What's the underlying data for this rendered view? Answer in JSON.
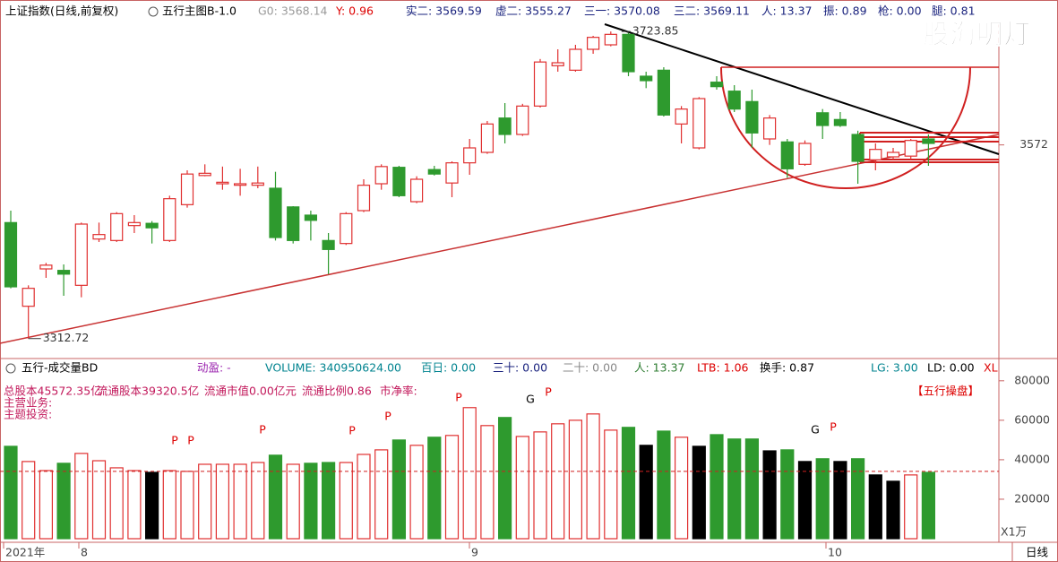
{
  "header": {
    "symbol": "上证指数(日线,前复权)",
    "indicator": "五行主图B-1.0",
    "g0": "G0: 3568.14",
    "y": "Y: 0.96",
    "shi2": "实二: 3569.59",
    "xu2": "虚二: 3555.27",
    "san1": "三一: 3570.08",
    "san2": "三二: 3569.11",
    "ren": "人: 13.37",
    "zhen": "振: 0.89",
    "qiang": "枪: 0.00",
    "tui": "腿: 0.81"
  },
  "watermark": "股海明灯",
  "volume_header": {
    "name": "五行-成交量BD",
    "dongying": "动盈: -",
    "volume": "VOLUME: 340950624.00",
    "bairi": "百日: 0.00",
    "sanshi": "三十: 0.00",
    "ershi": "二十: 0.00",
    "ren": "人: 13.37",
    "ltb": "LTB: 1.06",
    "huanshou": "换手: 0.87",
    "lg": "LG: 3.00",
    "ld": "LD: 0.00",
    "xl": "XL"
  },
  "info": {
    "total_shares": "总股本45572.35亿",
    "float_shares": "流通股本39320.5亿",
    "float_value": "流通市值0.00亿元",
    "float_ratio": "流通比例0.86",
    "pb": "市净率:",
    "business": "主营业务:",
    "theme": "主题投资:",
    "brand": "【五行操盘】"
  },
  "chart_data": [
    {
      "type": "candlestick",
      "up_color": "#e03030",
      "down_color": "#2e9a2e",
      "open": [
        3468,
        3356,
        3406,
        3404,
        3384,
        3446,
        3444,
        3464,
        3467,
        3444,
        3492,
        3531,
        3520,
        3518,
        3518,
        3514,
        3489,
        3478,
        3444,
        3440,
        3484,
        3520,
        3542,
        3496,
        3539,
        3521,
        3548,
        3562,
        3608,
        3586,
        3624,
        3678,
        3672,
        3700,
        3706,
        3720,
        3664,
        3672,
        3600,
        3568,
        3656,
        3644,
        3630,
        3580,
        3576,
        3546,
        3615,
        3606,
        3586,
        3552,
        3556,
        3557,
        3580
      ],
      "high": [
        3484,
        3384,
        3414,
        3412,
        3468,
        3468,
        3482,
        3478,
        3470,
        3504,
        3538,
        3546,
        3543,
        3540,
        3543,
        3536,
        3490,
        3484,
        3454,
        3482,
        3526,
        3546,
        3544,
        3530,
        3544,
        3550,
        3580,
        3604,
        3628,
        3627,
        3687,
        3700,
        3706,
        3718,
        3723.85,
        3722,
        3670,
        3676,
        3624,
        3636,
        3664,
        3652,
        3646,
        3612,
        3580,
        3578,
        3620,
        3616,
        3591,
        3574,
        3568,
        3580,
        3586
      ],
      "low": [
        3380,
        3312.72,
        3394,
        3370,
        3368,
        3442,
        3442,
        3454,
        3440,
        3442,
        3488,
        3530,
        3512,
        3504,
        3514,
        3444,
        3440,
        3444,
        3399,
        3438,
        3482,
        3512,
        3502,
        3494,
        3531,
        3502,
        3532,
        3560,
        3574,
        3584,
        3622,
        3670,
        3670,
        3694,
        3704,
        3664,
        3648,
        3610,
        3574,
        3566,
        3646,
        3616,
        3568,
        3572,
        3528,
        3544,
        3580,
        3596,
        3520,
        3538,
        3552,
        3552,
        3544
      ],
      "close": [
        3382,
        3380,
        3411,
        3399,
        3466,
        3452,
        3480,
        3468,
        3461,
        3500,
        3533,
        3534,
        3522,
        3520,
        3521,
        3448,
        3444,
        3471,
        3432,
        3480,
        3518,
        3543,
        3504,
        3526,
        3533,
        3548,
        3568,
        3600,
        3586,
        3624,
        3683,
        3682,
        3700,
        3716,
        3720,
        3670,
        3658,
        3612,
        3620,
        3634,
        3650,
        3620,
        3588,
        3608,
        3540,
        3574,
        3598,
        3598,
        3550,
        3566,
        3562,
        3578,
        3574
      ],
      "ylim": [
        3286,
        3736
      ],
      "yticks": [
        3572
      ]
    },
    {
      "type": "bar",
      "values": [
        46800,
        39100,
        34500,
        38200,
        43200,
        39500,
        35900,
        34500,
        33600,
        34500,
        34100,
        37700,
        37700,
        37700,
        38600,
        42300,
        37700,
        38200,
        38600,
        38600,
        42700,
        45000,
        50000,
        47300,
        51400,
        52300,
        66400,
        57300,
        61400,
        51800,
        54100,
        58200,
        60000,
        63200,
        55000,
        56400,
        47300,
        54500,
        51400,
        46800,
        52700,
        50500,
        50500,
        44500,
        45000,
        39100,
        40500,
        39100,
        40500,
        32300,
        29100,
        32300,
        33600
      ],
      "colors": [
        "#2e9a2e",
        "#e03030",
        "#e03030",
        "#2e9a2e",
        "#e03030",
        "#e03030",
        "#e03030",
        "#e03030",
        "#000000",
        "#e03030",
        "#e03030",
        "#e03030",
        "#e03030",
        "#e03030",
        "#e03030",
        "#2e9a2e",
        "#e03030",
        "#2e9a2e",
        "#2e9a2e",
        "#e03030",
        "#e03030",
        "#e03030",
        "#2e9a2e",
        "#e03030",
        "#2e9a2e",
        "#e03030",
        "#e03030",
        "#e03030",
        "#2e9a2e",
        "#e03030",
        "#e03030",
        "#e03030",
        "#e03030",
        "#e03030",
        "#e03030",
        "#2e9a2e",
        "#000000",
        "#2e9a2e",
        "#e03030",
        "#000000",
        "#2e9a2e",
        "#2e9a2e",
        "#2e9a2e",
        "#000000",
        "#2e9a2e",
        "#000000",
        "#2e9a2e",
        "#000000",
        "#2e9a2e",
        "#000000",
        "#000000",
        "#e03030",
        "#2e9a2e"
      ],
      "ref_line": 34100,
      "ylim": [
        0,
        89000
      ],
      "yticks": [
        20000,
        40000,
        60000,
        80000
      ],
      "markers": [
        "P",
        "P",
        "P",
        "P",
        "P",
        "P",
        "G",
        "P",
        "G",
        "P"
      ],
      "unit_label": "X1万",
      "x_labels": [
        "2021年",
        "8",
        "9",
        "10"
      ],
      "period_label": "日线"
    }
  ]
}
